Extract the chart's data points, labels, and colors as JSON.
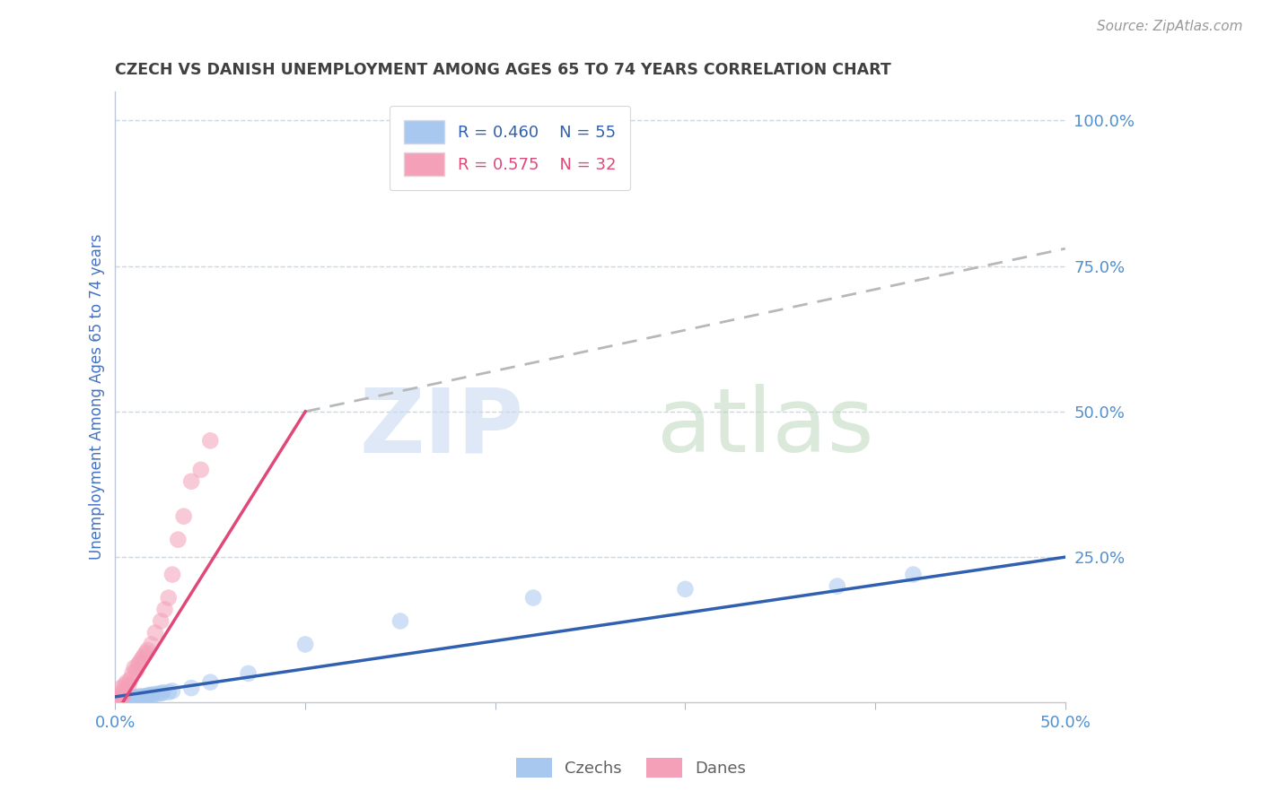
{
  "title": "CZECH VS DANISH UNEMPLOYMENT AMONG AGES 65 TO 74 YEARS CORRELATION CHART",
  "source": "Source: ZipAtlas.com",
  "ylabel": "Unemployment Among Ages 65 to 74 years",
  "xlim": [
    0.0,
    0.5
  ],
  "ylim": [
    0.0,
    1.05
  ],
  "czechs_color": "#a8c8f0",
  "danes_color": "#f4a0b8",
  "czechs_line_color": "#3060b0",
  "danes_line_color": "#e04878",
  "R_czechs": 0.46,
  "N_czechs": 55,
  "R_danes": 0.575,
  "N_danes": 32,
  "tick_label_color": "#5090d0",
  "axis_label_color": "#4472c4",
  "title_color": "#404040",
  "grid_color": "#c8d8e8",
  "background_color": "#ffffff",
  "czechs_x": [
    0.0,
    0.001,
    0.001,
    0.002,
    0.002,
    0.002,
    0.003,
    0.003,
    0.003,
    0.004,
    0.004,
    0.004,
    0.005,
    0.005,
    0.005,
    0.005,
    0.006,
    0.006,
    0.006,
    0.007,
    0.007,
    0.007,
    0.008,
    0.008,
    0.009,
    0.009,
    0.01,
    0.01,
    0.01,
    0.011,
    0.012,
    0.012,
    0.013,
    0.013,
    0.014,
    0.015,
    0.016,
    0.017,
    0.018,
    0.019,
    0.02,
    0.022,
    0.024,
    0.025,
    0.028,
    0.03,
    0.04,
    0.05,
    0.07,
    0.1,
    0.15,
    0.22,
    0.3,
    0.38,
    0.42
  ],
  "czechs_y": [
    0.0,
    0.001,
    0.002,
    0.001,
    0.003,
    0.004,
    0.002,
    0.003,
    0.005,
    0.002,
    0.004,
    0.006,
    0.001,
    0.003,
    0.005,
    0.007,
    0.002,
    0.004,
    0.006,
    0.003,
    0.005,
    0.008,
    0.004,
    0.006,
    0.004,
    0.007,
    0.005,
    0.008,
    0.01,
    0.007,
    0.006,
    0.009,
    0.008,
    0.011,
    0.009,
    0.01,
    0.011,
    0.012,
    0.013,
    0.012,
    0.014,
    0.015,
    0.016,
    0.017,
    0.018,
    0.02,
    0.025,
    0.035,
    0.05,
    0.1,
    0.14,
    0.18,
    0.195,
    0.2,
    0.22
  ],
  "danes_x": [
    0.0,
    0.001,
    0.001,
    0.002,
    0.003,
    0.003,
    0.004,
    0.005,
    0.005,
    0.006,
    0.007,
    0.008,
    0.009,
    0.01,
    0.011,
    0.012,
    0.013,
    0.014,
    0.015,
    0.016,
    0.017,
    0.019,
    0.021,
    0.024,
    0.026,
    0.028,
    0.03,
    0.033,
    0.036,
    0.04,
    0.045,
    0.05
  ],
  "danes_y": [
    0.0,
    0.005,
    0.01,
    0.015,
    0.008,
    0.025,
    0.012,
    0.03,
    0.02,
    0.035,
    0.03,
    0.04,
    0.05,
    0.06,
    0.055,
    0.065,
    0.07,
    0.075,
    0.08,
    0.085,
    0.09,
    0.1,
    0.12,
    0.14,
    0.16,
    0.18,
    0.22,
    0.28,
    0.32,
    0.38,
    0.4,
    0.45
  ],
  "czechs_line_x": [
    0.0,
    0.5
  ],
  "czechs_line_y": [
    0.01,
    0.25
  ],
  "danes_line_x": [
    0.0,
    0.1
  ],
  "danes_line_y": [
    -0.02,
    0.5
  ],
  "dash_line_x": [
    0.1,
    0.5
  ],
  "dash_line_y": [
    0.5,
    0.78
  ]
}
